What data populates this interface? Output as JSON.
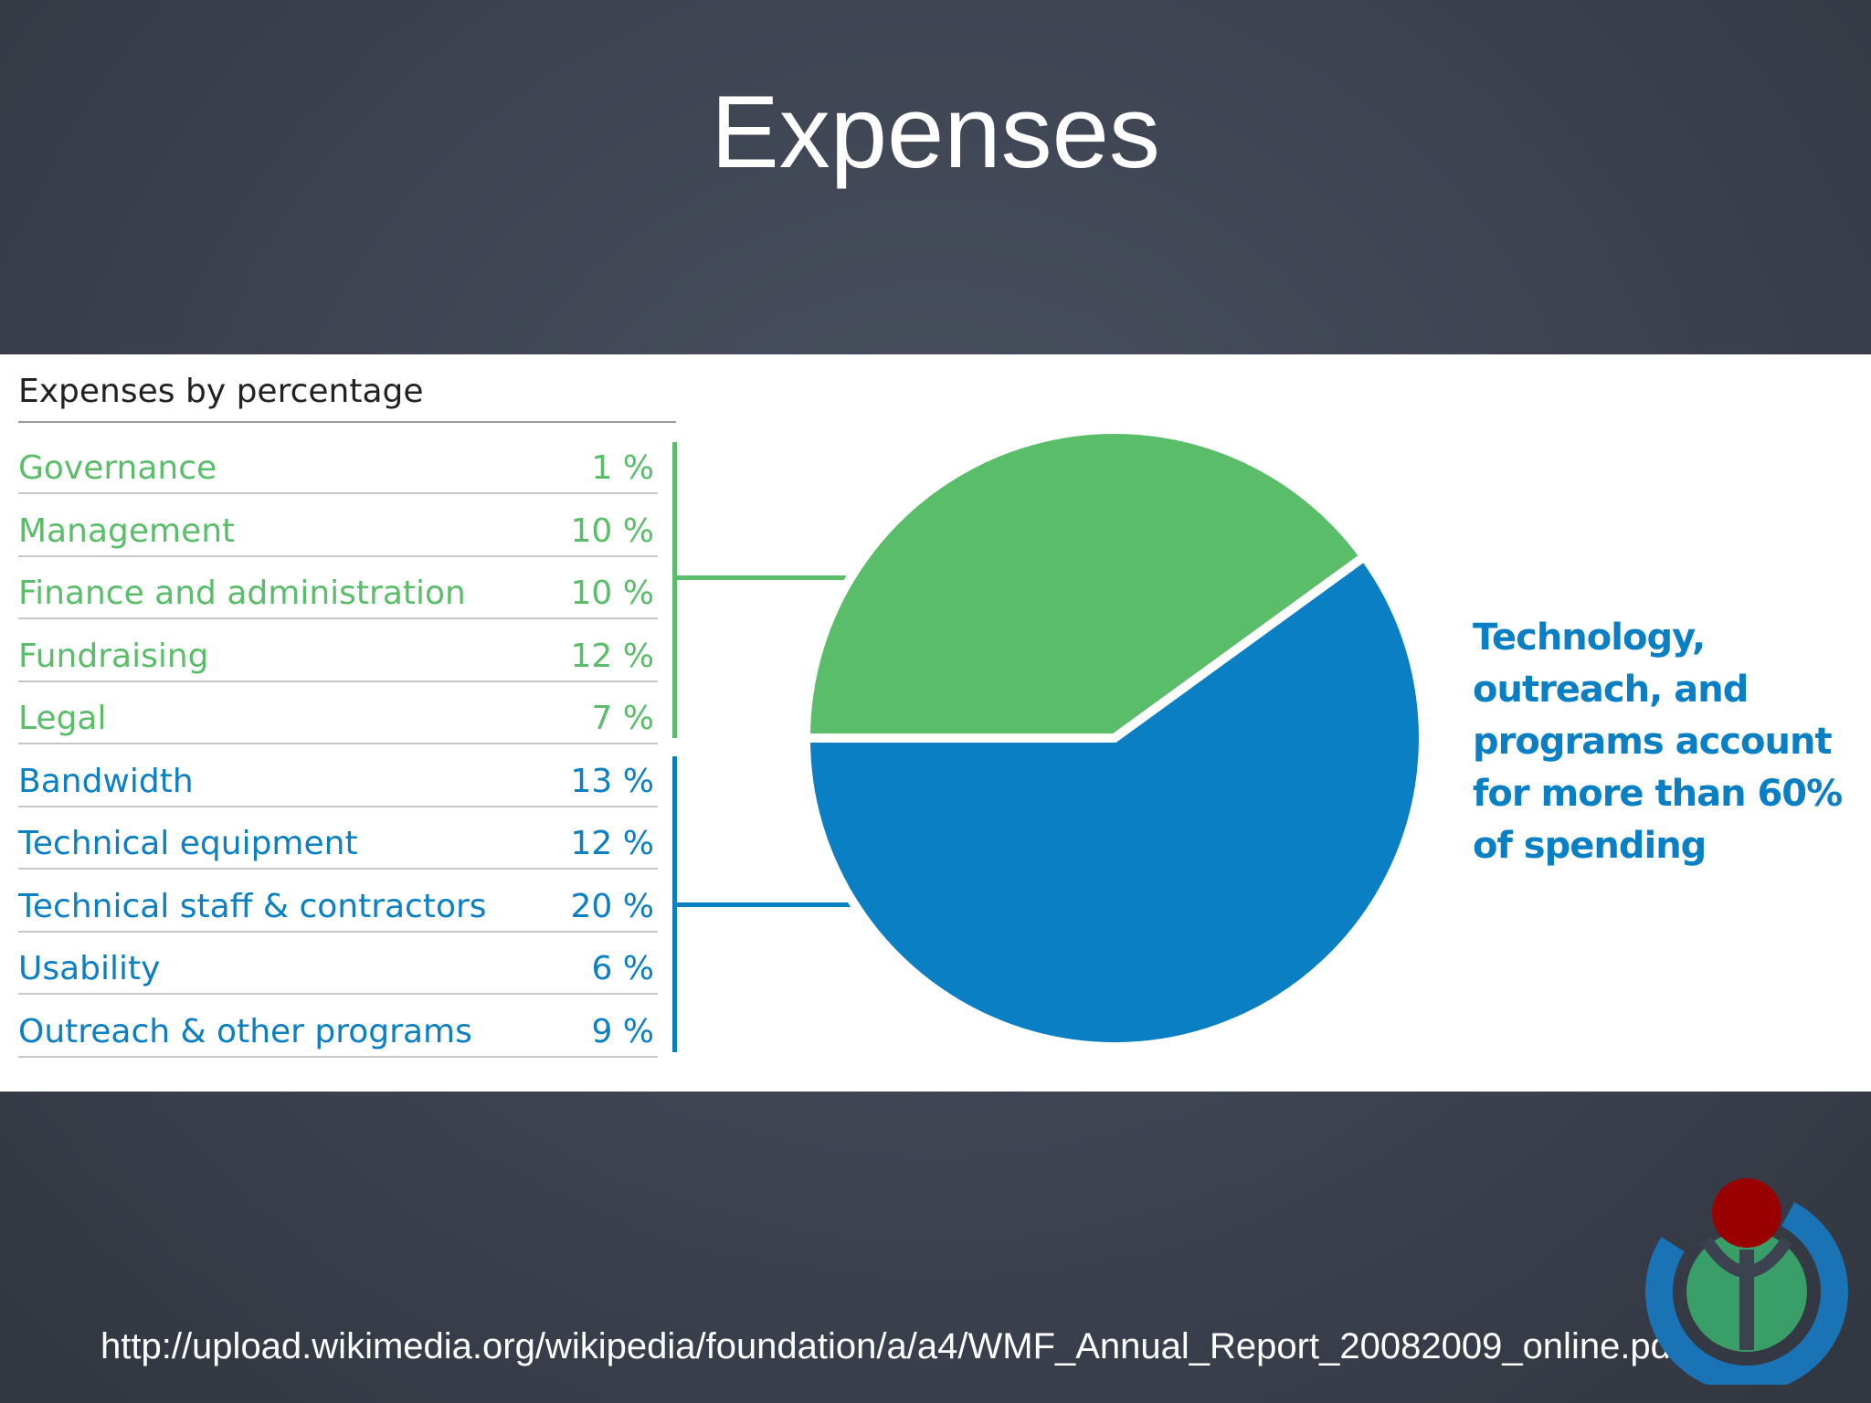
{
  "slide": {
    "title": "Expenses",
    "source_url": "http://upload.wikimedia.org/wikipedia/foundation/a/a4/WMF_Annual_Report_20082009_online.pdf",
    "logo": "wikimedia-logo"
  },
  "table": {
    "heading": "Expenses by percentage",
    "rows": [
      {
        "label": "Governance",
        "percent": "1 %",
        "group": "green"
      },
      {
        "label": "Management",
        "percent": "10 %",
        "group": "green"
      },
      {
        "label": "Finance and administration",
        "percent": "10 %",
        "group": "green"
      },
      {
        "label": "Fundraising",
        "percent": "12 %",
        "group": "green"
      },
      {
        "label": "Legal",
        "percent": "7 %",
        "group": "green"
      },
      {
        "label": "Bandwidth",
        "percent": "13 %",
        "group": "blue"
      },
      {
        "label": "Technical equipment",
        "percent": "12 %",
        "group": "blue"
      },
      {
        "label": "Technical staff & contractors",
        "percent": "20 %",
        "group": "blue"
      },
      {
        "label": "Usability",
        "percent": "6 %",
        "group": "blue"
      },
      {
        "label": "Outreach & other programs",
        "percent": "9 %",
        "group": "blue"
      }
    ]
  },
  "note": "Technology, outreach, and programs account for more than 60% of spending",
  "colors": {
    "green": "#59bd69",
    "blue": "#0a7fc3"
  },
  "chart_data": {
    "type": "pie",
    "title": "Expenses by percentage",
    "categories": [
      "Governance",
      "Management",
      "Finance and administration",
      "Fundraising",
      "Legal",
      "Bandwidth",
      "Technical equipment",
      "Technical staff & contractors",
      "Usability",
      "Outreach & other programs"
    ],
    "values": [
      1,
      10,
      10,
      12,
      7,
      13,
      12,
      20,
      6,
      9
    ],
    "groups": [
      {
        "color": "#59bd69",
        "value": 40
      },
      {
        "color": "#0a7fc3",
        "value": 60
      }
    ]
  }
}
